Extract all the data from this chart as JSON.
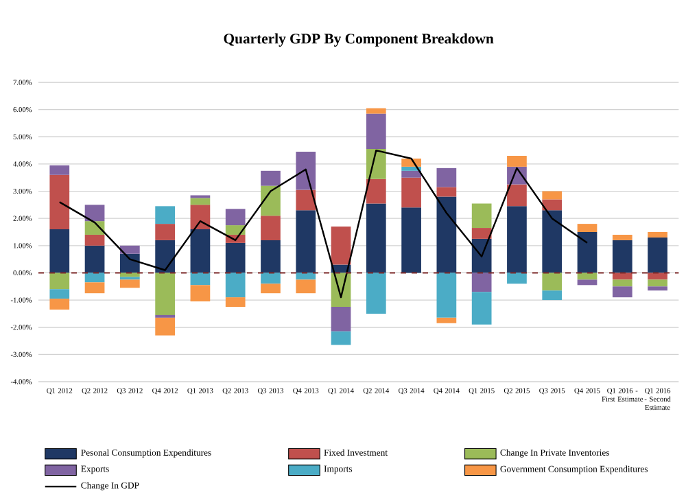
{
  "chart_data": {
    "type": "bar",
    "title": "Quarterly GDP By Component Breakdown",
    "stacked": true,
    "grid": "y",
    "legend": "bottom",
    "categories": [
      "Q1 2012",
      "Q2 2012",
      "Q3 2012",
      "Q4 2012",
      "Q1 2013",
      "Q2 2013",
      "Q3 2013",
      "Q4 2013",
      "Q1 2014",
      "Q2 2014",
      "Q3 2014",
      "Q4 2014",
      "Q1 2015",
      "Q2 2015",
      "Q3 2015",
      "Q4 2015",
      "Q1 2016 - First Estimate",
      "Q1 2016 - Second Estimate"
    ],
    "ylim": [
      -4,
      7
    ],
    "yticks": [
      {
        "value": -4,
        "label": "-4.00%"
      },
      {
        "value": -3,
        "label": "-3.00%"
      },
      {
        "value": -2,
        "label": "-2.00%"
      },
      {
        "value": -1,
        "label": "-1.00%"
      },
      {
        "value": 0,
        "label": "0.00%"
      },
      {
        "value": 1,
        "label": "1.00%"
      },
      {
        "value": 2,
        "label": "2.00%"
      },
      {
        "value": 3,
        "label": "3.00%"
      },
      {
        "value": 4,
        "label": "4.00%"
      },
      {
        "value": 5,
        "label": "5.00%"
      },
      {
        "value": 6,
        "label": "6.00%"
      },
      {
        "value": 7,
        "label": "7.00%"
      }
    ],
    "ref_lines": [
      {
        "axis": "y",
        "value": 0,
        "color": "#7f2a2a",
        "line_style": "dashed"
      }
    ],
    "series": [
      {
        "name": "Pesonal Consumption Expenditures",
        "color": "#1f3864",
        "values": [
          1.6,
          1.0,
          0.7,
          1.2,
          1.6,
          1.1,
          1.2,
          2.3,
          0.3,
          2.55,
          2.4,
          2.8,
          1.25,
          2.45,
          2.3,
          1.5,
          1.2,
          1.3
        ]
      },
      {
        "name": "Fixed Investment",
        "color": "#c0504d",
        "values": [
          2.0,
          0.4,
          0,
          0.6,
          0.9,
          0.3,
          0.9,
          0.75,
          1.4,
          0.9,
          1.1,
          0.35,
          0.4,
          0.8,
          0.4,
          0,
          -0.25,
          -0.25
        ]
      },
      {
        "name": "Change In Private Inventories",
        "color": "#9bbb59",
        "values": [
          -0.6,
          0.5,
          -0.15,
          -1.55,
          0.25,
          0.35,
          1.1,
          0,
          -1.25,
          1.1,
          0,
          0,
          0.9,
          0,
          -0.65,
          -0.25,
          -0.25,
          -0.25
        ]
      },
      {
        "name": "Exports",
        "color": "#8064a2",
        "values": [
          0.35,
          0.6,
          0.3,
          -0.1,
          0.1,
          0.6,
          0.55,
          1.4,
          -0.9,
          1.3,
          0.25,
          0.7,
          -0.7,
          0.65,
          0,
          -0.2,
          -0.4,
          -0.15
        ]
      },
      {
        "name": "Imports",
        "color": "#4bacc6",
        "values": [
          -0.35,
          -0.35,
          -0.1,
          0.65,
          -0.45,
          -0.9,
          -0.4,
          -0.25,
          -0.5,
          -1.5,
          0.15,
          -1.65,
          -1.2,
          -0.4,
          -0.35,
          0,
          0,
          0
        ]
      },
      {
        "name": "Government Consumption Expenditures",
        "color": "#f79646",
        "values": [
          -0.4,
          -0.4,
          -0.3,
          -0.65,
          -0.6,
          -0.35,
          -0.35,
          -0.5,
          0,
          0.2,
          0.3,
          -0.2,
          0,
          0.4,
          0.3,
          0.3,
          0.2,
          0.2
        ]
      },
      {
        "name": "Change In GDP",
        "type": "line",
        "color": "#000000",
        "marker": "none",
        "values": [
          2.6,
          1.85,
          0.5,
          0.1,
          1.9,
          1.2,
          3.0,
          3.8,
          -0.9,
          4.5,
          4.2,
          2.2,
          0.6,
          3.85,
          2.0,
          1.1,
          null,
          null
        ]
      }
    ]
  }
}
